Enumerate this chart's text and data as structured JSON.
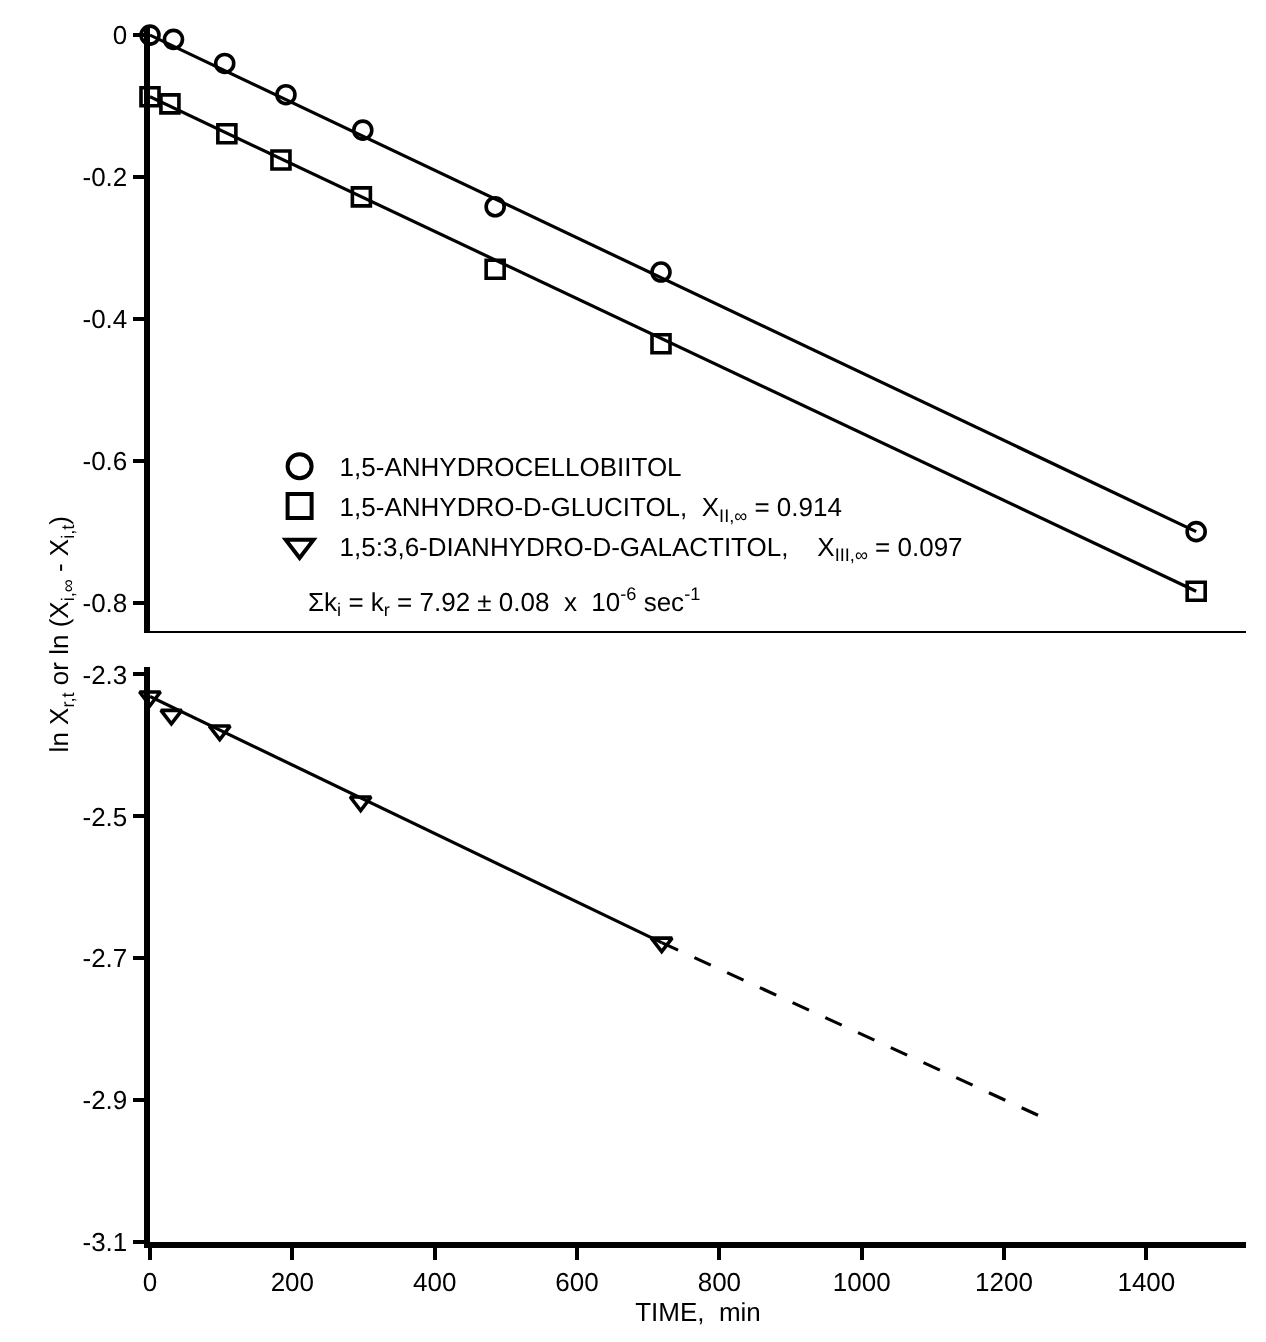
{
  "chart_data": [
    {
      "type": "scatter",
      "ylabel": "ln X$_{r,t}$ or ln (X$_{i,∞}$ - X$_{i,t}$)",
      "xlim": [
        0,
        1540
      ],
      "xticks": [
        0,
        200,
        400,
        600,
        800,
        1000,
        1200,
        1400
      ],
      "ylim": [
        -0.84,
        0.01
      ],
      "yticks": [
        0,
        -0.2,
        -0.4,
        -0.6,
        -0.8
      ],
      "tick_labels": "y",
      "legend": "bottom left",
      "annotations": [
        "Σk$_{i}$ = k$_{r}$ = 7.92 ± 0.08  x  10$^{-6}$ sec$^{-1}$"
      ],
      "series": [
        {
          "name": "1,5-ANHYDROCELLOBIITOL",
          "color": "#000000",
          "marker": "circle",
          "x": [
            0,
            33,
            105,
            191,
            299,
            485,
            718,
            1470
          ],
          "values": [
            0,
            -0.006,
            -0.04,
            -0.084,
            -0.134,
            -0.242,
            -0.334,
            -0.7
          ]
        },
        {
          "name": "1,5-ANHYDRO-D-GLUCITOL,  X$_{II,∞}$ = 0.914",
          "color": "#000000",
          "marker": "square",
          "x": [
            0,
            28,
            108,
            184,
            297,
            485,
            718,
            1470
          ],
          "values": [
            -0.087,
            -0.097,
            -0.139,
            -0.176,
            -0.228,
            -0.33,
            -0.435,
            -0.784
          ]
        },
        {
          "type": "line",
          "color": "#000000",
          "line_style": "solid",
          "marker": "none",
          "x": [
            0,
            1470
          ],
          "values": [
            0,
            -0.7
          ]
        },
        {
          "type": "line",
          "color": "#000000",
          "line_style": "solid",
          "marker": "none",
          "x": [
            0,
            1470
          ],
          "values": [
            -0.087,
            -0.784
          ]
        }
      ]
    },
    {
      "type": "scatter",
      "xlabel": "TIME,  min",
      "xlim": [
        0,
        1540
      ],
      "xticks": [
        0,
        200,
        400,
        600,
        800,
        1000,
        1200,
        1400
      ],
      "ylim": [
        -3.1,
        -2.29
      ],
      "yticks": [
        -2.3,
        -2.5,
        -2.7,
        -2.9,
        -3.1
      ],
      "series": [
        {
          "name": "1,5:3,6-DIANHYDRO-D-GALACTITOL,    X$_{III,∞}$ = 0.097",
          "color": "#000000",
          "marker": "triangle",
          "x": [
            0,
            30,
            98,
            296,
            719
          ],
          "values": [
            -2.331,
            -2.357,
            -2.379,
            -2.479,
            -2.678
          ]
        },
        {
          "type": "line",
          "color": "#000000",
          "line_style": "solid",
          "marker": "none",
          "x": [
            0,
            719
          ],
          "values": [
            -2.331,
            -2.678
          ]
        },
        {
          "type": "line",
          "color": "#000000",
          "line_style": "dashed",
          "marker": "none",
          "x": [
            719,
            1256
          ],
          "values": [
            -2.678,
            -2.925
          ]
        }
      ]
    }
  ]
}
